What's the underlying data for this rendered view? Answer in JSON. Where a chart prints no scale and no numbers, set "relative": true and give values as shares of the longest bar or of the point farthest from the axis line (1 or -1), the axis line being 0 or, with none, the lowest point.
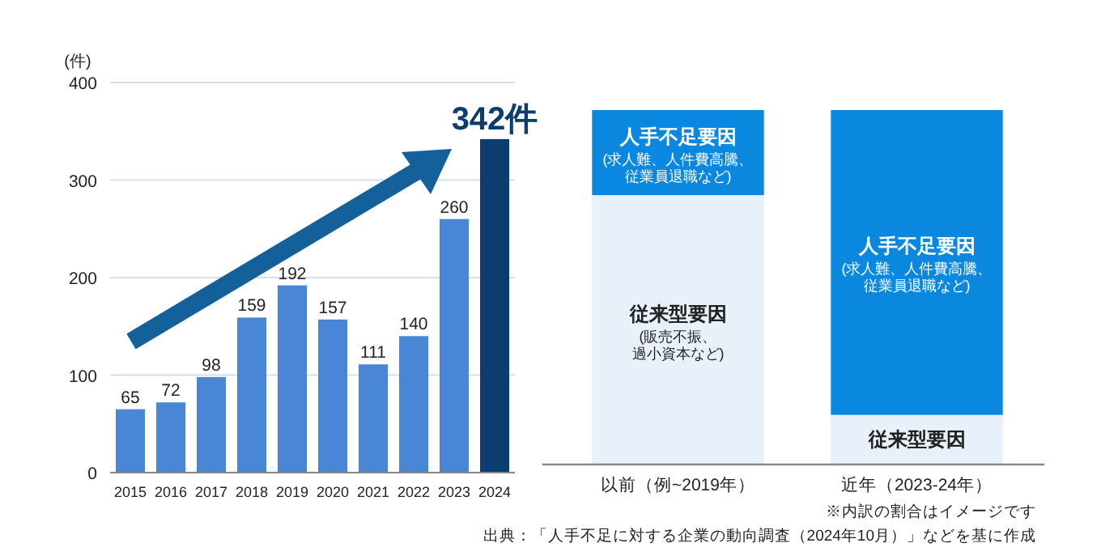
{
  "chart_data": [
    {
      "type": "bar",
      "ylabel": "(件)",
      "categories": [
        "2015",
        "2016",
        "2017",
        "2018",
        "2019",
        "2020",
        "2021",
        "2022",
        "2023",
        "2024"
      ],
      "values": [
        65,
        72,
        98,
        159,
        192,
        157,
        111,
        140,
        260,
        342
      ],
      "colors": [
        "#4a86d6",
        "#4a86d6",
        "#4a86d6",
        "#4a86d6",
        "#4a86d6",
        "#4a86d6",
        "#4a86d6",
        "#4a86d6",
        "#4a86d6",
        "#0d3c6e"
      ],
      "value_labels": [
        "65",
        "72",
        "98",
        "159",
        "192",
        "157",
        "111",
        "140",
        "260",
        "342件"
      ],
      "ylim": [
        0,
        400
      ],
      "yticks": [
        0,
        100,
        200,
        300,
        400
      ],
      "grid": "y"
    },
    {
      "type": "bar",
      "relative": true,
      "stacked": true,
      "categories": [
        "以前（例~2019年）",
        "近年（2023-24年）"
      ],
      "series": [
        {
          "name": "従来型要因",
          "color": "#e8f0fa",
          "values": [
            0.76,
            0.14
          ]
        },
        {
          "name": "人手不足要因",
          "color": "#0a88e0",
          "values": [
            0.24,
            0.86
          ]
        }
      ],
      "annotations": [
        "(販売不振、過小資本など)",
        "(求人難、人件費高騰、従業員退職など)",
        "(求人難、人件費高騰、従業員退職など)",
        "※内訳の割合はイメージです",
        "出典：「人手不足に対する企業の動向調査（2024年10月）」などを基に作成"
      ]
    }
  ]
}
